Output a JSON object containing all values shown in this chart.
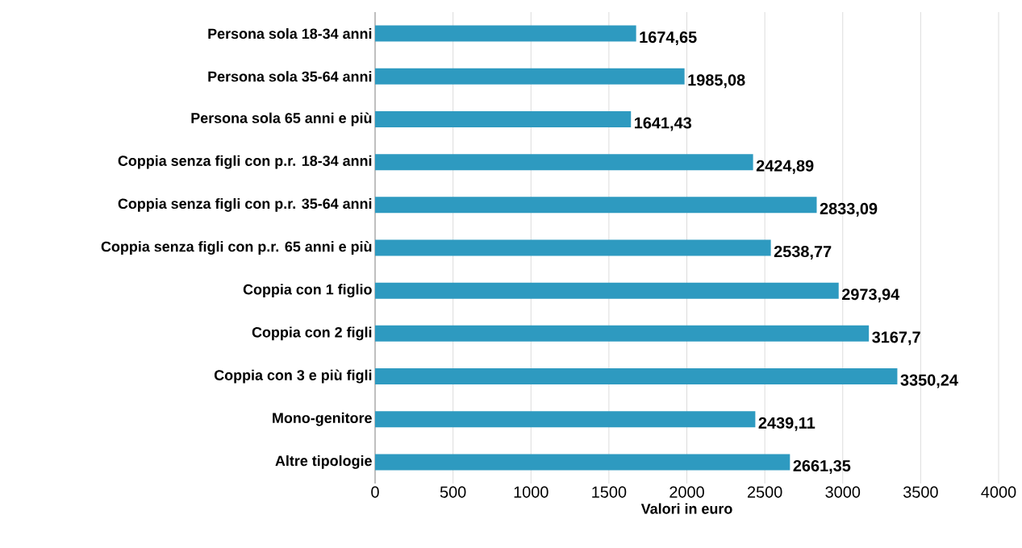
{
  "chart_data": {
    "type": "bar",
    "orientation": "horizontal",
    "categories": [
      "Persona sola 18-34 anni",
      "Persona sola 35-64 anni",
      "Persona sola 65 anni e più",
      "Coppia senza figli con p.r. 18-34 anni",
      "Coppia senza figli con p.r. 35-64 anni",
      "Coppia senza figli con p.r. 65 anni e più",
      "Coppia con 1 figlio",
      "Coppia con 2 figli",
      "Coppia con 3 e più figli",
      "Mono-genitore",
      "Altre tipologie"
    ],
    "values": [
      1674.65,
      1985.08,
      1641.43,
      2424.89,
      2833.09,
      2538.77,
      2973.94,
      3167.7,
      3350.24,
      2439.11,
      2661.35
    ],
    "value_labels": [
      "1674,65",
      "1985,08",
      "1641,43",
      "2424,89",
      "2833,09",
      "2538,77",
      "2973,94",
      "3167,7",
      "3350,24",
      "2439,11",
      "2661,35"
    ],
    "color": "#2e9ac0",
    "xlim": [
      0,
      4000
    ],
    "xticks": [
      0,
      500,
      1000,
      1500,
      2000,
      2500,
      3000,
      3500,
      4000
    ],
    "xlabel": "Valori in euro",
    "grid": "x"
  }
}
